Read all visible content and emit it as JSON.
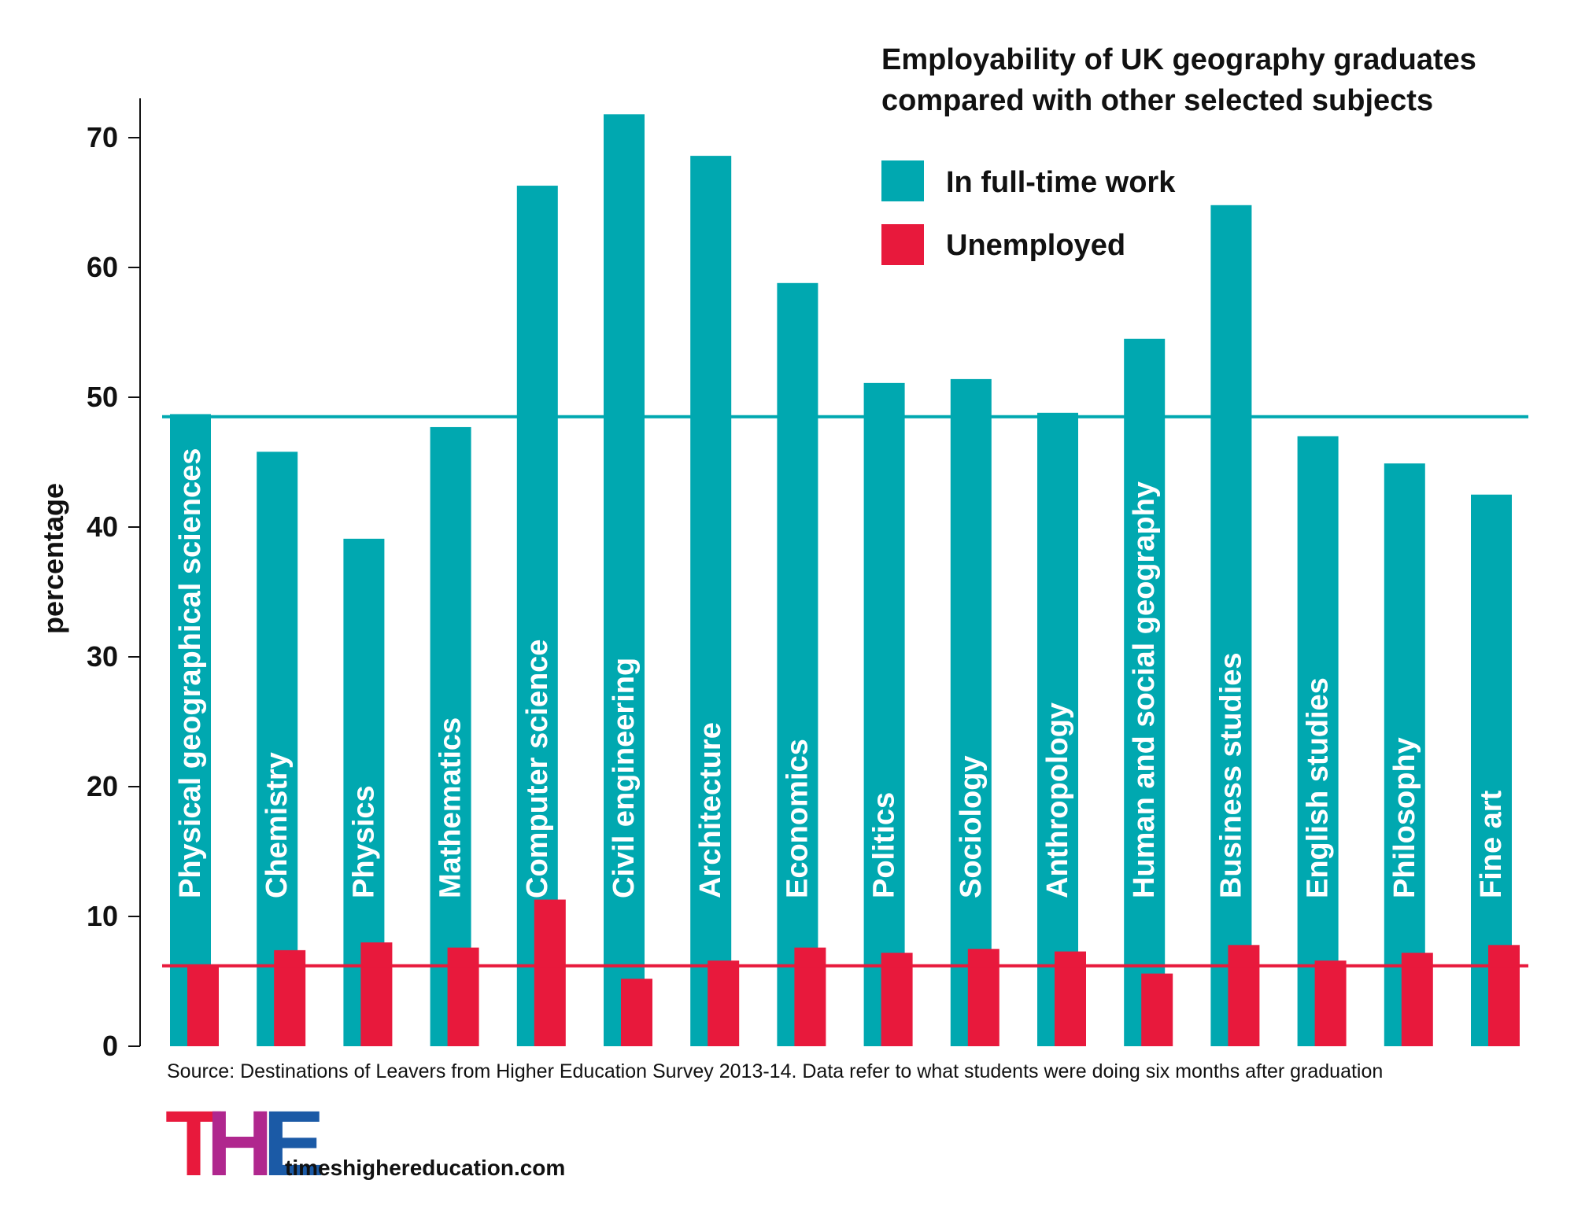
{
  "chart_data": {
    "type": "bar",
    "title": [
      "Employability of UK geography graduates",
      "compared with other selected subjects"
    ],
    "ylabel": "percentage",
    "ylim": [
      0,
      75
    ],
    "yticks": [
      0,
      10,
      20,
      30,
      40,
      50,
      60,
      70
    ],
    "categories": [
      "Physical geographical sciences",
      "Chemistry",
      "Physics",
      "Mathematics",
      "Computer science",
      "Civil engineering",
      "Architecture",
      "Economics",
      "Politics",
      "Sociology",
      "Anthropology",
      "Human and social geography",
      "Business studies",
      "English studies",
      "Philosophy",
      "Fine art"
    ],
    "series": [
      {
        "name": "In full-time work",
        "color": "#00a8b0",
        "values": [
          48.7,
          45.8,
          39.1,
          47.7,
          66.3,
          71.8,
          68.6,
          58.8,
          51.1,
          51.4,
          48.8,
          54.5,
          64.8,
          47.0,
          44.9,
          42.5
        ]
      },
      {
        "name": "Unemployed",
        "color": "#e8193c",
        "values": [
          6.3,
          7.4,
          8.0,
          7.6,
          11.3,
          5.2,
          6.6,
          7.6,
          7.2,
          7.5,
          7.3,
          5.6,
          7.8,
          6.6,
          7.2,
          7.8
        ]
      }
    ],
    "reference_lines": [
      {
        "series": "In full-time work",
        "value": 48.5,
        "color": "#00a8b0"
      },
      {
        "series": "Unemployed",
        "value": 6.2,
        "color": "#e8193c"
      }
    ],
    "legend_position": "top-right"
  },
  "source": "Source: Destinations of Leavers from Higher Education Survey 2013-14.  Data refer to what students were doing six months after graduation",
  "logo": {
    "letters": [
      "T",
      "H",
      "E"
    ],
    "colors": [
      "#e8193c",
      "#b0278e",
      "#1b5aa6"
    ]
  },
  "website": "timeshighereducation.com"
}
